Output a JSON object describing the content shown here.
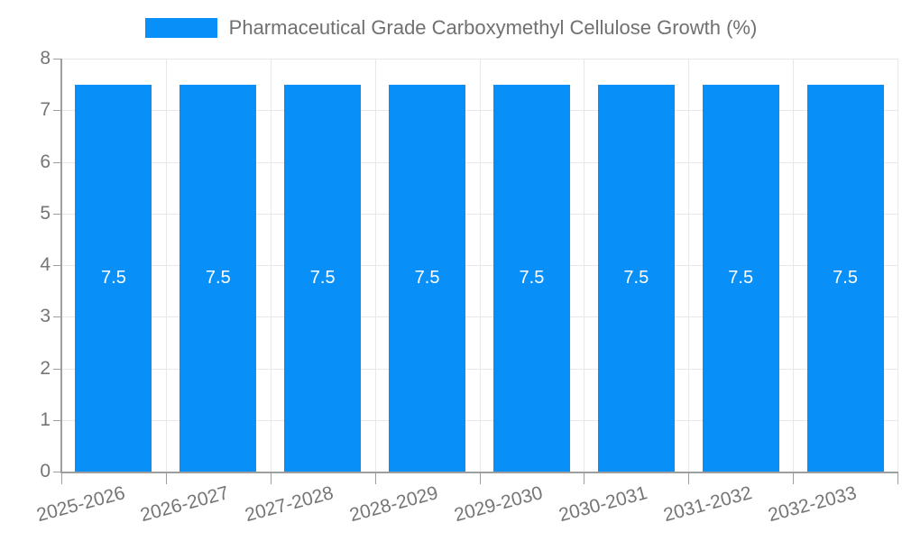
{
  "chart_data": {
    "type": "bar",
    "title": "Pharmaceutical Grade Carboxymethyl Cellulose Growth (%)",
    "legend": {
      "label": "Pharmaceutical Grade Carboxymethyl Cellulose Growth (%)",
      "position": "top"
    },
    "categories": [
      "2025-2026",
      "2026-2027",
      "2027-2028",
      "2028-2029",
      "2029-2030",
      "2030-2031",
      "2031-2032",
      "2032-2033"
    ],
    "values": [
      7.5,
      7.5,
      7.5,
      7.5,
      7.5,
      7.5,
      7.5,
      7.5
    ],
    "bar_labels": [
      "7.5",
      "7.5",
      "7.5",
      "7.5",
      "7.5",
      "7.5",
      "7.5",
      "7.5"
    ],
    "xlabel": "",
    "ylabel": "",
    "ylim": [
      0,
      8
    ],
    "yticks": [
      0,
      1,
      2,
      3,
      4,
      5,
      6,
      7,
      8
    ],
    "grid": true,
    "colors": {
      "bar": "#0990f8",
      "grid": "#e8e8e8",
      "axis": "#9e9e9e",
      "tick_text": "#757575",
      "bar_label": "#ffffff"
    }
  }
}
